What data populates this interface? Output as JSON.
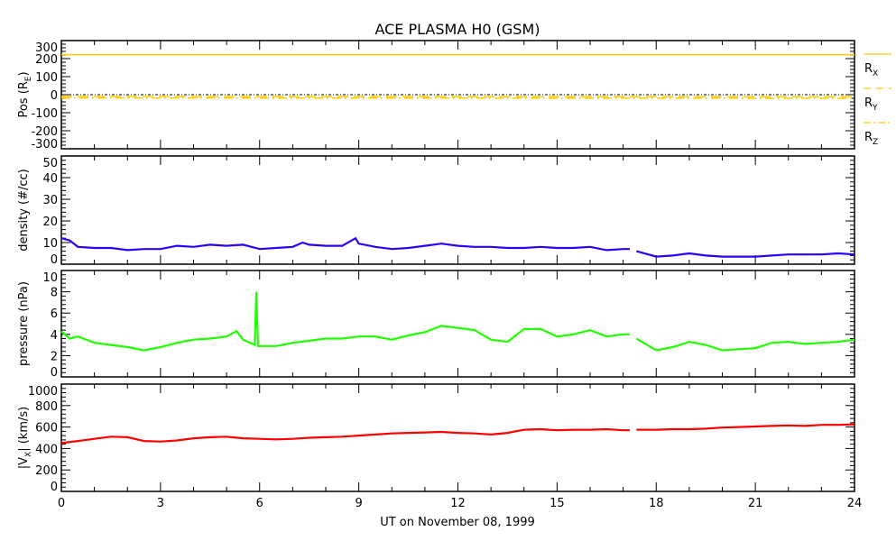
{
  "chart_data": {
    "type": "line",
    "title": "ACE PLASMA H0 (GSM)",
    "xlabel": "UT on November 08, 1999",
    "xlim": [
      0,
      24
    ],
    "xticks": [
      0,
      3,
      6,
      9,
      12,
      15,
      18,
      21,
      24
    ],
    "colors": {
      "position": "#ffcc00",
      "density": "#2a00ff",
      "pressure": "#22ff00",
      "vx": "#ff0000"
    },
    "panels": [
      {
        "id": "position",
        "ylabel": {
          "pre": "Pos (R",
          "sub": "E",
          "post": ")"
        },
        "ylim": [
          -300,
          300
        ],
        "yticks": [
          -300,
          -200,
          -100,
          0,
          100,
          200,
          300
        ],
        "zero_line": true,
        "series": [
          {
            "name": "R_X",
            "label": {
              "pre": "R",
              "sub": "X"
            },
            "style": "solid",
            "points": [
              [
                0,
                222
              ],
              [
                24,
                222
              ]
            ]
          },
          {
            "name": "R_Y",
            "label": {
              "pre": "R",
              "sub": "Y"
            },
            "style": "dashed",
            "points": [
              [
                0,
                -10
              ],
              [
                24,
                -12
              ]
            ]
          },
          {
            "name": "R_Z",
            "label": {
              "pre": "R",
              "sub": "Z"
            },
            "style": "dashdot",
            "points": [
              [
                0,
                -18
              ],
              [
                24,
                -20
              ]
            ]
          }
        ]
      },
      {
        "id": "density",
        "ylabel": {
          "pre": "density (#/cc)",
          "sub": "",
          "post": ""
        },
        "ylim": [
          0,
          50
        ],
        "yticks": [
          0,
          10,
          20,
          30,
          40,
          50
        ],
        "series": [
          {
            "name": "density",
            "points": [
              [
                0,
                12
              ],
              [
                0.25,
                11
              ],
              [
                0.5,
                8
              ],
              [
                1,
                7.5
              ],
              [
                1.5,
                7.5
              ],
              [
                2,
                6.5
              ],
              [
                2.5,
                7
              ],
              [
                3,
                7
              ],
              [
                3.5,
                8.5
              ],
              [
                4,
                8
              ],
              [
                4.5,
                9
              ],
              [
                5,
                8.5
              ],
              [
                5.5,
                9
              ],
              [
                6,
                7
              ],
              [
                6.5,
                7.5
              ],
              [
                7,
                8
              ],
              [
                7.3,
                10
              ],
              [
                7.5,
                9
              ],
              [
                8,
                8.5
              ],
              [
                8.5,
                8.5
              ],
              [
                8.9,
                12
              ],
              [
                9,
                9.5
              ],
              [
                9.5,
                8
              ],
              [
                10,
                7
              ],
              [
                10.5,
                7.5
              ],
              [
                11,
                8.5
              ],
              [
                11.5,
                9.5
              ],
              [
                12,
                8.5
              ],
              [
                12.5,
                8
              ],
              [
                13,
                8
              ],
              [
                13.5,
                7.5
              ],
              [
                14,
                7.5
              ],
              [
                14.5,
                8
              ],
              [
                15,
                7.5
              ],
              [
                15.5,
                7.5
              ],
              [
                16,
                8
              ],
              [
                16.5,
                6.5
              ],
              [
                17,
                7
              ],
              [
                17.2,
                7
              ],
              [
                17.3,
                null
              ],
              [
                17.4,
                6
              ],
              [
                18,
                3.5
              ],
              [
                18.5,
                4
              ],
              [
                19,
                5
              ],
              [
                19.5,
                4
              ],
              [
                20,
                3.5
              ],
              [
                20.5,
                3.5
              ],
              [
                21,
                3.5
              ],
              [
                21.5,
                4
              ],
              [
                22,
                4.5
              ],
              [
                22.5,
                4.5
              ],
              [
                23,
                4.5
              ],
              [
                23.5,
                5
              ],
              [
                24,
                4.5
              ]
            ]
          }
        ]
      },
      {
        "id": "pressure",
        "ylabel": {
          "pre": "pressure (nPa)",
          "sub": "",
          "post": ""
        },
        "ylim": [
          0,
          10
        ],
        "yticks": [
          0,
          2,
          4,
          6,
          8,
          10
        ],
        "series": [
          {
            "name": "pressure",
            "points": [
              [
                0,
                4.3
              ],
              [
                0.25,
                3.6
              ],
              [
                0.5,
                3.8
              ],
              [
                1,
                3.2
              ],
              [
                1.5,
                3
              ],
              [
                2,
                2.8
              ],
              [
                2.5,
                2.5
              ],
              [
                3,
                2.8
              ],
              [
                3.5,
                3.2
              ],
              [
                4,
                3.5
              ],
              [
                4.5,
                3.6
              ],
              [
                5,
                3.8
              ],
              [
                5.3,
                4.3
              ],
              [
                5.5,
                3.5
              ],
              [
                5.85,
                3
              ],
              [
                5.9,
                8
              ],
              [
                5.95,
                2.9
              ],
              [
                6,
                2.9
              ],
              [
                6.5,
                2.9
              ],
              [
                7,
                3.2
              ],
              [
                7.5,
                3.4
              ],
              [
                8,
                3.6
              ],
              [
                8.5,
                3.6
              ],
              [
                9,
                3.8
              ],
              [
                9.5,
                3.8
              ],
              [
                10,
                3.5
              ],
              [
                10.5,
                3.9
              ],
              [
                11,
                4.2
              ],
              [
                11.5,
                4.8
              ],
              [
                12,
                4.6
              ],
              [
                12.5,
                4.4
              ],
              [
                13,
                3.5
              ],
              [
                13.5,
                3.3
              ],
              [
                14,
                4.5
              ],
              [
                14.5,
                4.5
              ],
              [
                15,
                3.8
              ],
              [
                15.5,
                4
              ],
              [
                16,
                4.4
              ],
              [
                16.5,
                3.8
              ],
              [
                17,
                4
              ],
              [
                17.2,
                4
              ],
              [
                17.3,
                null
              ],
              [
                17.4,
                3.6
              ],
              [
                18,
                2.5
              ],
              [
                18.5,
                2.8
              ],
              [
                19,
                3.3
              ],
              [
                19.5,
                3
              ],
              [
                20,
                2.5
              ],
              [
                20.5,
                2.6
              ],
              [
                21,
                2.7
              ],
              [
                21.5,
                3.2
              ],
              [
                22,
                3.3
              ],
              [
                22.5,
                3.1
              ],
              [
                23,
                3.2
              ],
              [
                23.5,
                3.3
              ],
              [
                24,
                3.5
              ]
            ]
          }
        ]
      },
      {
        "id": "vx",
        "ylabel": {
          "pre": "|V",
          "sub": "X",
          "post": "| (km/s)"
        },
        "ylim": [
          0,
          1000
        ],
        "yticks": [
          0,
          200,
          400,
          600,
          800,
          1000
        ],
        "series": [
          {
            "name": "|Vx|",
            "points": [
              [
                0,
                450
              ],
              [
                0.5,
                470
              ],
              [
                1,
                490
              ],
              [
                1.5,
                510
              ],
              [
                2,
                505
              ],
              [
                2.5,
                470
              ],
              [
                3,
                465
              ],
              [
                3.5,
                475
              ],
              [
                4,
                495
              ],
              [
                4.5,
                505
              ],
              [
                5,
                510
              ],
              [
                5.5,
                495
              ],
              [
                6,
                490
              ],
              [
                6.5,
                485
              ],
              [
                7,
                490
              ],
              [
                7.5,
                500
              ],
              [
                8,
                505
              ],
              [
                8.5,
                510
              ],
              [
                9,
                520
              ],
              [
                9.5,
                530
              ],
              [
                10,
                540
              ],
              [
                10.5,
                545
              ],
              [
                11,
                550
              ],
              [
                11.5,
                555
              ],
              [
                12,
                545
              ],
              [
                12.5,
                540
              ],
              [
                13,
                530
              ],
              [
                13.5,
                545
              ],
              [
                14,
                575
              ],
              [
                14.5,
                580
              ],
              [
                15,
                570
              ],
              [
                15.5,
                575
              ],
              [
                16,
                575
              ],
              [
                16.5,
                580
              ],
              [
                17,
                570
              ],
              [
                17.2,
                570
              ],
              [
                17.3,
                null
              ],
              [
                17.4,
                575
              ],
              [
                18,
                575
              ],
              [
                18.5,
                580
              ],
              [
                19,
                580
              ],
              [
                19.5,
                585
              ],
              [
                20,
                595
              ],
              [
                20.5,
                600
              ],
              [
                21,
                605
              ],
              [
                21.5,
                610
              ],
              [
                22,
                615
              ],
              [
                22.5,
                610
              ],
              [
                23,
                620
              ],
              [
                23.5,
                620
              ],
              [
                24,
                625
              ]
            ]
          }
        ]
      }
    ]
  }
}
